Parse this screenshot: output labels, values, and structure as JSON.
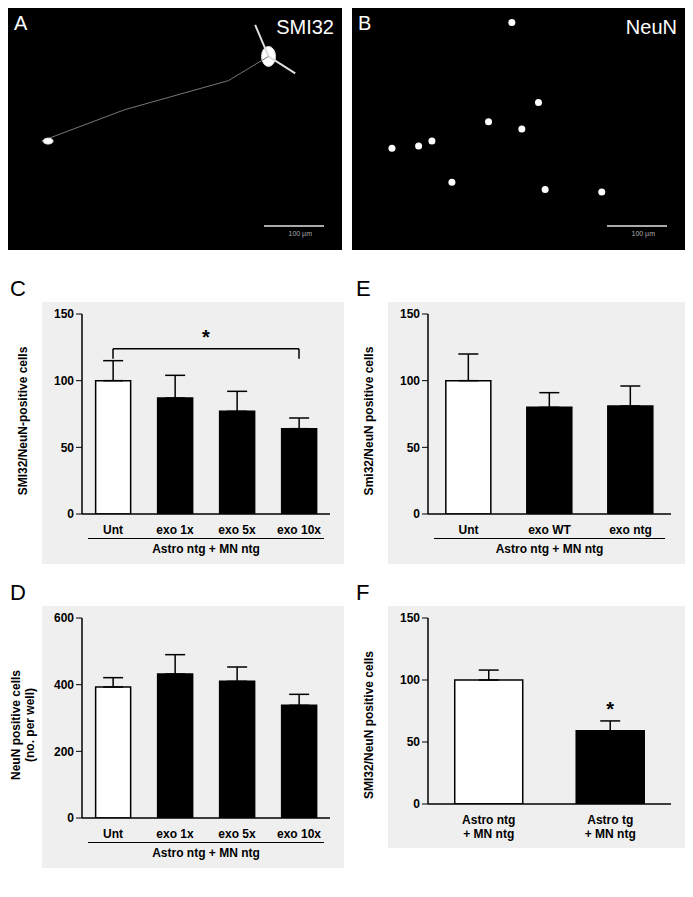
{
  "images": [
    {
      "panel_label": "A",
      "title": "SMI32",
      "scale_bar": "100 µm"
    },
    {
      "panel_label": "B",
      "title": "NeuN",
      "scale_bar": "100 µm"
    }
  ],
  "chart_data": [
    {
      "type": "bar",
      "panel_label": "C",
      "ylabel": "SMI32/NeuN-positive cells",
      "xlabel": "Astro ntg + MN ntg",
      "categories": [
        "Unt",
        "exo 1x",
        "exo 5x",
        "exo 10x"
      ],
      "values": [
        100,
        87,
        77,
        64
      ],
      "errors": [
        15,
        17,
        15,
        8
      ],
      "colors": [
        "#ffffff",
        "#000000",
        "#000000",
        "#000000"
      ],
      "ylim": [
        0,
        150
      ],
      "yticks": [
        0,
        50,
        100,
        150
      ],
      "significance": {
        "from": "Unt",
        "to": "exo 10x",
        "label": "*"
      }
    },
    {
      "type": "bar",
      "panel_label": "E",
      "ylabel": "Smi32/NeuN positive cells",
      "xlabel": "Astro ntg + MN ntg",
      "categories": [
        "Unt",
        "exo WT",
        "exo ntg"
      ],
      "values": [
        100,
        80,
        81
      ],
      "errors": [
        20,
        11,
        15
      ],
      "colors": [
        "#ffffff",
        "#000000",
        "#000000"
      ],
      "ylim": [
        0,
        150
      ],
      "yticks": [
        0,
        50,
        100,
        150
      ]
    },
    {
      "type": "bar",
      "panel_label": "D",
      "ylabel": "NeuN positive cells\n(no. per well)",
      "xlabel": "Astro ntg + MN ntg",
      "categories": [
        "Unt",
        "exo 1x",
        "exo 5x",
        "exo 10x"
      ],
      "values": [
        393,
        432,
        410,
        338
      ],
      "errors": [
        28,
        58,
        43,
        33
      ],
      "colors": [
        "#ffffff",
        "#000000",
        "#000000",
        "#000000"
      ],
      "ylim": [
        0,
        600
      ],
      "yticks": [
        0,
        200,
        400,
        600
      ]
    },
    {
      "type": "bar",
      "panel_label": "F",
      "ylabel": "SMI32/NeuN positive cells",
      "categories": [
        "Astro ntg + MN ntg",
        "Astro tg + MN ntg"
      ],
      "values": [
        100,
        59
      ],
      "errors": [
        8,
        8
      ],
      "colors": [
        "#ffffff",
        "#000000"
      ],
      "ylim": [
        0,
        150
      ],
      "yticks": [
        0,
        50,
        100,
        150
      ],
      "significance": {
        "bar": "Astro tg + MN ntg",
        "label": "*"
      }
    }
  ]
}
